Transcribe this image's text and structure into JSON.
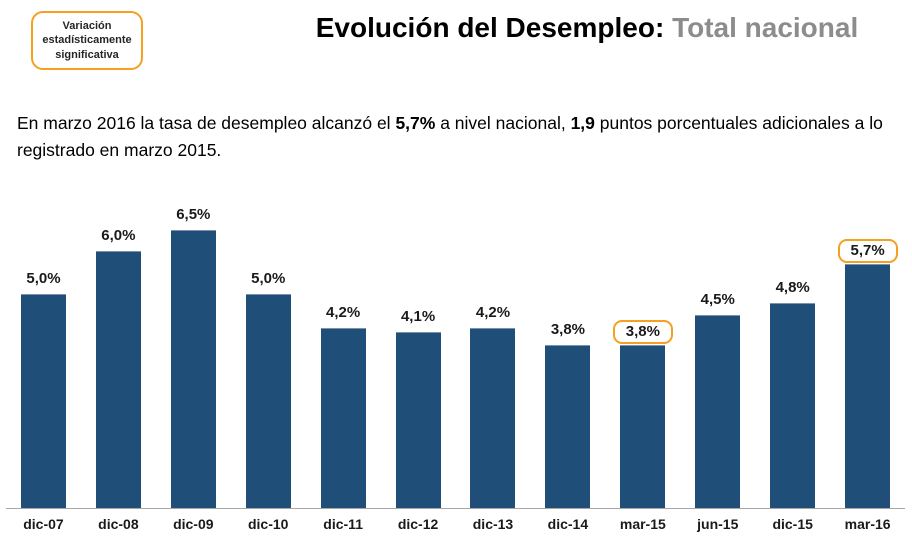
{
  "note": {
    "text": "Variación estadísticamente significativa"
  },
  "header": {
    "title_main": "Evolución del Desempleo: ",
    "title_accent": "Total nacional"
  },
  "intro": {
    "part1": "En marzo 2016 la tasa de desempleo alcanzó el ",
    "bold1": "5,7%",
    "part2": " a nivel nacional, ",
    "bold2": "1,9",
    "part3": " puntos porcentuales adicionales a lo registrado en marzo 2015."
  },
  "chart_data": {
    "type": "bar",
    "title": "Evolución del Desempleo: Total nacional",
    "categories": [
      "dic-07",
      "dic-08",
      "dic-09",
      "dic-10",
      "dic-11",
      "dic-12",
      "dic-13",
      "dic-14",
      "mar-15",
      "jun-15",
      "dic-15",
      "mar-16"
    ],
    "values": [
      5.0,
      6.0,
      6.5,
      5.0,
      4.2,
      4.1,
      4.2,
      3.8,
      3.8,
      4.5,
      4.8,
      5.7
    ],
    "value_labels": [
      "5,0%",
      "6,0%",
      "6,5%",
      "5,0%",
      "4,2%",
      "4,1%",
      "4,2%",
      "3,8%",
      "3,8%",
      "4,5%",
      "4,8%",
      "5,7%"
    ],
    "highlighted": [
      false,
      false,
      false,
      false,
      false,
      false,
      false,
      false,
      true,
      false,
      false,
      true
    ],
    "highlight_meaning": "Variación estadísticamente significativa",
    "xlabel": "",
    "ylabel": "",
    "ylim": [
      0,
      7.1
    ],
    "grid": false,
    "legend": false,
    "bar_color": "#1F4E79",
    "highlight_color": "#F5A021",
    "axis_color": "#A6A6A6",
    "title_accent_color": "#8C8C8C"
  }
}
